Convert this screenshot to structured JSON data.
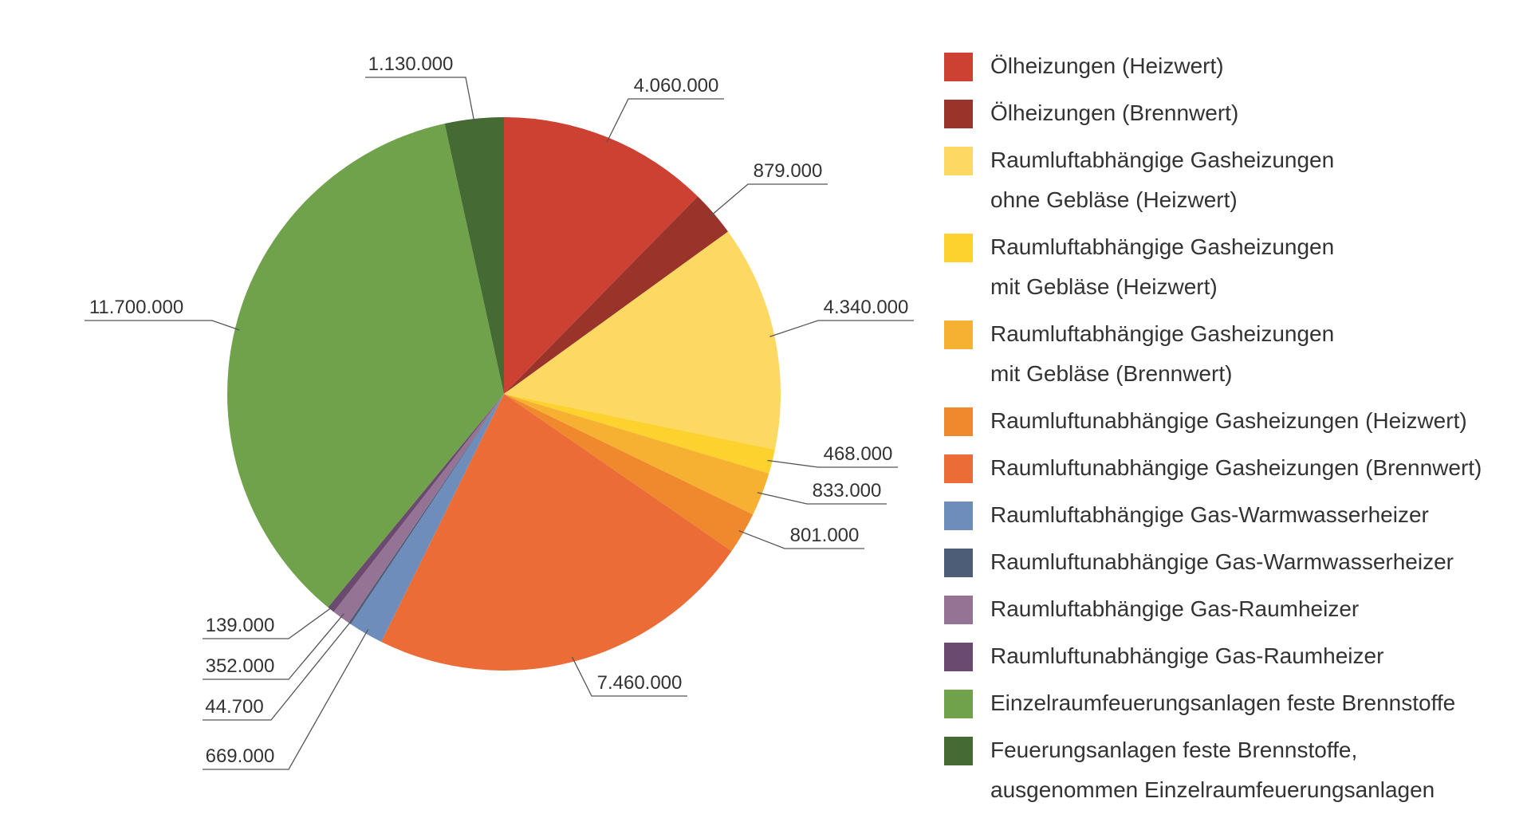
{
  "chart_data": {
    "type": "pie",
    "title": "",
    "series": [
      {
        "name": "Ölheizungen (Heizwert)",
        "value": 4060000,
        "label": "4.060.000",
        "color": "#CD4132"
      },
      {
        "name": "Ölheizungen (Brennwert)",
        "value": 879000,
        "label": "879.000",
        "color": "#9A332A"
      },
      {
        "name": "Raumluftabhängige Gasheizungen\nohne Gebläse (Heizwert)",
        "value": 4340000,
        "label": "4.340.000",
        "color": "#FDD963"
      },
      {
        "name": "Raumluftabhängige Gasheizungen\nmit Gebläse (Heizwert)",
        "value": 468000,
        "label": "468.000",
        "color": "#FDD22F"
      },
      {
        "name": "Raumluftabhängige Gasheizungen\nmit Gebläse (Brennwert)",
        "value": 833000,
        "label": "833.000",
        "color": "#F7B132"
      },
      {
        "name": "Raumluftunabhängige Gasheizungen  (Heizwert)",
        "value": 801000,
        "label": "801.000",
        "color": "#F0892E"
      },
      {
        "name": "Raumluftunabhängige Gasheizungen  (Brennwert)",
        "value": 7460000,
        "label": "7.460.000",
        "color": "#EB6C37"
      },
      {
        "name": "Raumluftabhängige Gas-Warmwasserheizer",
        "value": 669000,
        "label": "669.000",
        "color": "#6E8DBA"
      },
      {
        "name": "Raumluftunabhängige Gas-Warmwasserheizer",
        "value": 44700,
        "label": "44.700",
        "color": "#4D5D78"
      },
      {
        "name": "Raumluftabhängige Gas-Raumheizer",
        "value": 352000,
        "label": "352.000",
        "color": "#957395"
      },
      {
        "name": "Raumluftunabhängige Gas-Raumheizer",
        "value": 139000,
        "label": "139.000",
        "color": "#6A4A6E"
      },
      {
        "name": "Einzelraumfeuerungsanlagen feste Brennstoffe",
        "value": 11700000,
        "label": "11.700.000",
        "color": "#70A24C"
      },
      {
        "name": "Feuerungsanlagen feste Brennstoffe,\nausgenommen Einzelraumfeuerungsanlagen",
        "value": 1130000,
        "label": "1.130.000",
        "color": "#466A33"
      }
    ],
    "legend": "right",
    "start_angle": "12 o'clock",
    "direction": "clockwise"
  }
}
